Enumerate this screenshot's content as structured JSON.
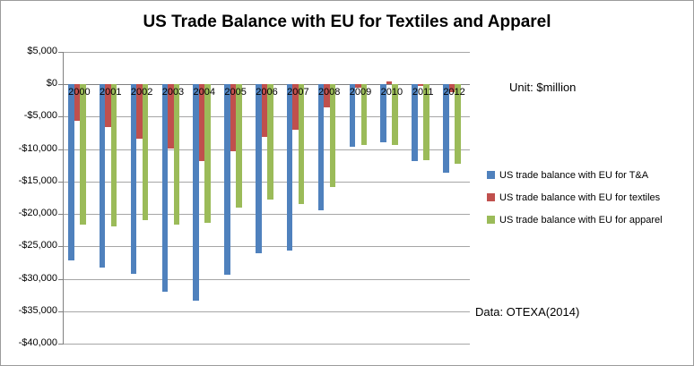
{
  "chart_data": {
    "type": "bar",
    "title": "US Trade Balance with EU for Textiles and Apparel",
    "unit_label": "Unit: $million",
    "source_label": "Data: OTEXA(2014)",
    "categories": [
      "2000",
      "2001",
      "2002",
      "2003",
      "2004",
      "2005",
      "2006",
      "2007",
      "2008",
      "2009",
      "2010",
      "2011",
      "2012"
    ],
    "series": [
      {
        "name": "US trade balance with EU for T&A",
        "color": "#4F81BD",
        "values": [
          -27100,
          -28200,
          -29200,
          -32000,
          -33400,
          -29400,
          -26000,
          -25700,
          -19500,
          -9700,
          -8900,
          -11900,
          -13600
        ]
      },
      {
        "name": "US trade balance with EU for textiles",
        "color": "#C0504D",
        "values": [
          -5600,
          -6600,
          -8400,
          -9900,
          -11800,
          -10300,
          -8100,
          -7000,
          -3600,
          -500,
          400,
          -200,
          -1200
        ]
      },
      {
        "name": "US trade balance with EU for apparel",
        "color": "#9BBB59",
        "values": [
          -21600,
          -21900,
          -21000,
          -21700,
          -21400,
          -19000,
          -17800,
          -18500,
          -15900,
          -9300,
          -9300,
          -11700,
          -12300
        ]
      }
    ],
    "xlabel": "",
    "ylabel": "",
    "ylim": [
      -40000,
      5000
    ],
    "ytick_step": 5000,
    "ytick_labels": [
      "$5,000",
      "$0",
      "-$5,000",
      "-$10,000",
      "-$15,000",
      "-$20,000",
      "-$25,000",
      "-$30,000",
      "-$35,000",
      "-$40,000"
    ],
    "grid": true,
    "legend_position": "right",
    "colors": {
      "gridline": "#a6a6a6",
      "axis": "#808080",
      "background": "#ffffff",
      "frame_border": "#9b9b9b"
    }
  }
}
